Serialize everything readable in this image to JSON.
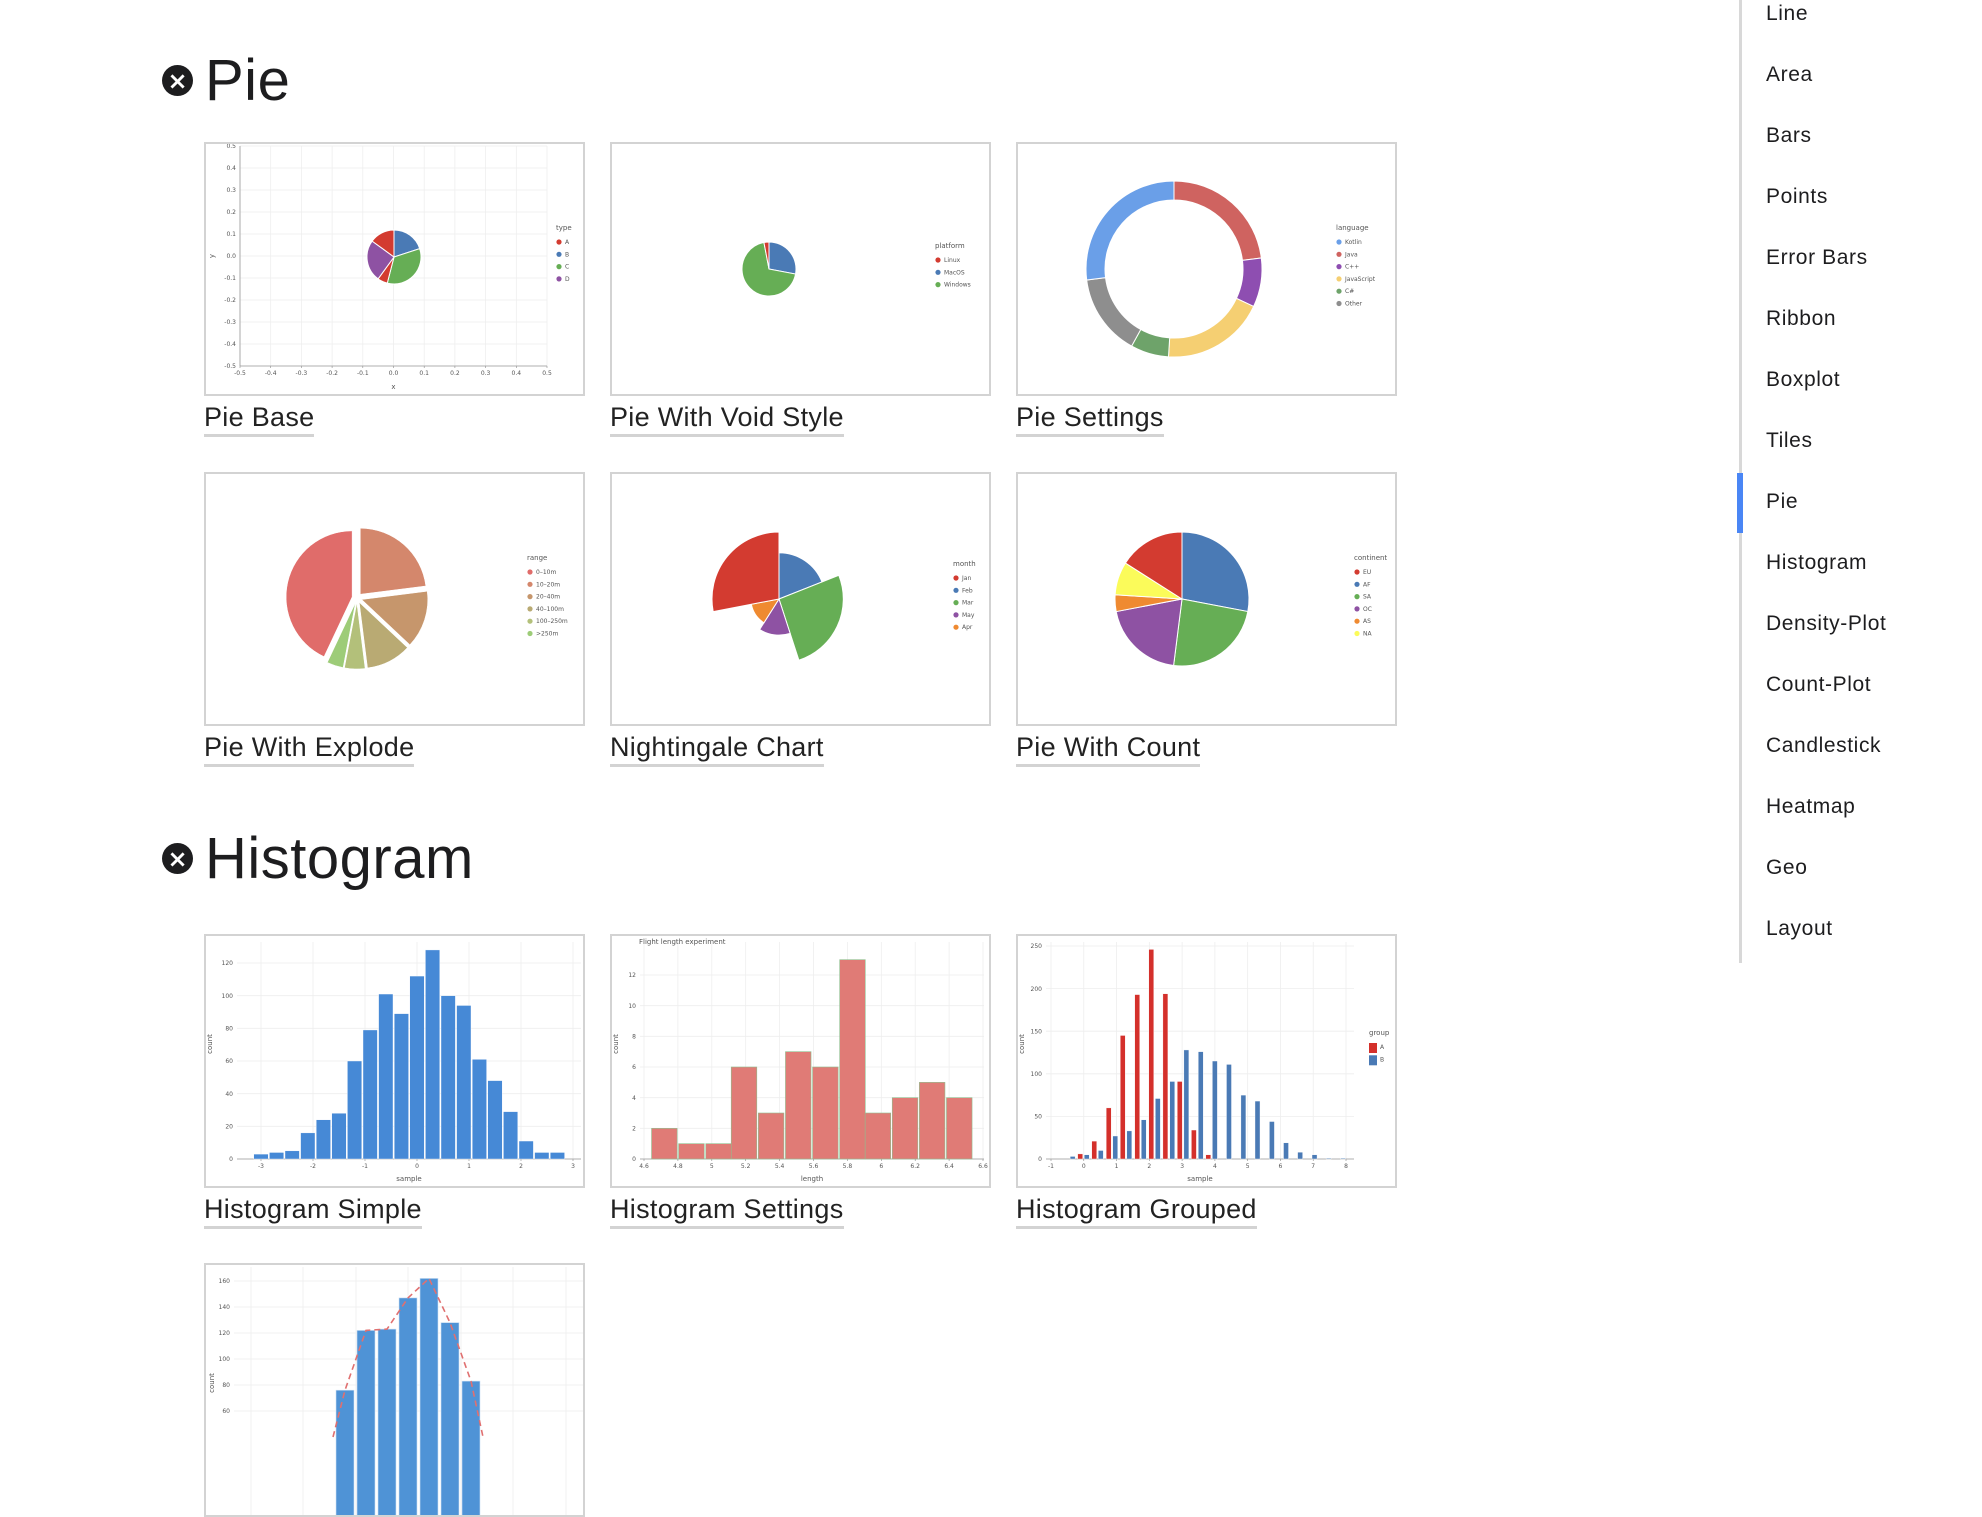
{
  "sections": [
    {
      "title": "Pie",
      "icon": "close-circle-icon"
    },
    {
      "title": "Histogram",
      "icon": "close-circle-icon"
    }
  ],
  "cards": [
    {
      "caption": "Pie Base"
    },
    {
      "caption": "Pie With Void Style"
    },
    {
      "caption": "Pie Settings"
    },
    {
      "caption": "Pie With Explode"
    },
    {
      "caption": "Nightingale Chart"
    },
    {
      "caption": "Pie With Count"
    },
    {
      "caption": "Histogram Simple"
    },
    {
      "caption": "Histogram Settings"
    },
    {
      "caption": "Histogram Grouped"
    },
    {
      "caption": ""
    }
  ],
  "sidebar": {
    "active": "Pie",
    "accent_color": "#4a86f5",
    "items": [
      "Line",
      "Area",
      "Bars",
      "Points",
      "Error Bars",
      "Ribbon",
      "Boxplot",
      "Tiles",
      "Pie",
      "Histogram",
      "Density-Plot",
      "Count-Plot",
      "Candlestick",
      "Heatmap",
      "Geo",
      "Layout"
    ]
  },
  "chart_data": [
    {
      "type": "pie",
      "xlabel": "x",
      "ylabel": "y",
      "xlim": [
        -0.5,
        0.5
      ],
      "ylim": [
        -0.5,
        0.5
      ],
      "xticks": [
        "-0.5",
        "-0.4",
        "-0.3",
        "-0.2",
        "-0.1",
        "0.0",
        "0.1",
        "0.2",
        "0.3",
        "0.4",
        "0.5"
      ],
      "yticks": [
        "0.5",
        "0.4",
        "0.3",
        "0.2",
        "0.1",
        "0.0",
        "-0.1",
        "-0.2",
        "-0.3",
        "-0.4",
        "-0.5"
      ],
      "grid": true,
      "slices": [
        {
          "name": "B",
          "value": 20
        },
        {
          "name": "C",
          "value": 34
        },
        {
          "name": "A",
          "value": 6
        },
        {
          "name": "D",
          "value": 25
        },
        {
          "name": "A",
          "value": 15
        }
      ],
      "legend": {
        "title": "type",
        "items": [
          "A",
          "B",
          "C",
          "D"
        ]
      },
      "colors": {
        "A": "#d33b30",
        "B": "#4a7ab5",
        "C": "#66ae55",
        "D": "#8e52a3"
      }
    },
    {
      "type": "pie",
      "slices": [
        {
          "name": "MacOS",
          "value": 28
        },
        {
          "name": "Windows",
          "value": 69
        },
        {
          "name": "Linux",
          "value": 3
        }
      ],
      "legend": {
        "title": "platform",
        "items": [
          "Linux",
          "MacOS",
          "Windows"
        ]
      },
      "colors": {
        "Linux": "#d33b30",
        "MacOS": "#4a7ab5",
        "Windows": "#66ae55"
      }
    },
    {
      "type": "pie",
      "hole": true,
      "slices": [
        {
          "name": "Java",
          "value": 23
        },
        {
          "name": "C++",
          "value": 9
        },
        {
          "name": "JavaScript",
          "value": 19
        },
        {
          "name": "C#",
          "value": 7
        },
        {
          "name": "Other",
          "value": 15
        },
        {
          "name": "Kotlin",
          "value": 27
        }
      ],
      "legend": {
        "title": "language",
        "items": [
          "Kotlin",
          "Java",
          "C++",
          "JavaScript",
          "C#",
          "Other"
        ]
      },
      "colors": {
        "Kotlin": "#6a9fe8",
        "Java": "#cf6360",
        "C++": "#8e4eb1",
        "JavaScript": "#f5cf72",
        "C#": "#6ea36a",
        "Other": "#8e8e8e"
      }
    },
    {
      "type": "pie",
      "explode": true,
      "slices": [
        {
          "name": "10–20m",
          "value": 23
        },
        {
          "name": "20–40m",
          "value": 14
        },
        {
          "name": "40–100m",
          "value": 11
        },
        {
          "name": "100–250m",
          "value": 5
        },
        {
          "name": ">250m",
          "value": 4
        },
        {
          "name": "0–10m",
          "value": 43
        }
      ],
      "legend": {
        "title": "range",
        "items": [
          "0–10m",
          "10–20m",
          "20–40m",
          "40–100m",
          "100–250m",
          ">250m"
        ]
      },
      "colors": {
        "0–10m": "#e06c6a",
        "10–20m": "#d4876c",
        "20–40m": "#c6966c",
        "40–100m": "#b9aa73",
        "100–250m": "#b3c07a",
        ">250m": "#9dcc78"
      }
    },
    {
      "type": "pie",
      "variant": "nightingale",
      "slices": [
        {
          "name": "Feb",
          "value": 19,
          "radius": 0.69
        },
        {
          "name": "Mar",
          "value": 26,
          "radius": 0.96
        },
        {
          "name": "May",
          "value": 14,
          "radius": 0.54
        },
        {
          "name": "Apr",
          "value": 13,
          "radius": 0.42
        },
        {
          "name": "Jan",
          "value": 28,
          "radius": 1.0
        }
      ],
      "legend": {
        "title": "month",
        "items": [
          "Jan",
          "Feb",
          "Mar",
          "May",
          "Apr"
        ]
      },
      "colors": {
        "Jan": "#d33b30",
        "Feb": "#4a7ab5",
        "Mar": "#66ae55",
        "May": "#8e52a3",
        "Apr": "#ef8a31"
      }
    },
    {
      "type": "pie",
      "slices": [
        {
          "name": "AF",
          "value": 28
        },
        {
          "name": "SA",
          "value": 24
        },
        {
          "name": "OC",
          "value": 20
        },
        {
          "name": "AS",
          "value": 4
        },
        {
          "name": "NA",
          "value": 8
        },
        {
          "name": "EU",
          "value": 16
        }
      ],
      "legend": {
        "title": "continent",
        "items": [
          "EU",
          "AF",
          "SA",
          "OC",
          "AS",
          "NA"
        ]
      },
      "colors": {
        "EU": "#d33b30",
        "AF": "#4a7ab5",
        "SA": "#66ae55",
        "OC": "#8e52a3",
        "AS": "#ef8a31",
        "NA": "#fbfb5a"
      }
    },
    {
      "type": "bar",
      "xlabel": "sample",
      "ylabel": "count",
      "xlim": [
        -3,
        3
      ],
      "ylim": [
        0,
        120
      ],
      "grid": true,
      "xticks": [
        -3,
        -2,
        -1,
        0,
        1,
        2,
        3
      ],
      "yticks": [
        0,
        20,
        40,
        60,
        80,
        100,
        120
      ],
      "binwidth": 0.3,
      "series": [
        {
          "color": "#4689d6",
          "x": [
            -3.0,
            -2.7,
            -2.4,
            -2.1,
            -1.8,
            -1.5,
            -1.2,
            -0.9,
            -0.6,
            -0.3,
            0.0,
            0.3,
            0.6,
            0.9,
            1.2,
            1.5,
            1.8,
            2.1,
            2.4,
            2.7
          ],
          "values": [
            3,
            4,
            5,
            16,
            24,
            28,
            60,
            79,
            101,
            89,
            112,
            128,
            100,
            94,
            61,
            48,
            29,
            11,
            4,
            4
          ]
        }
      ]
    },
    {
      "type": "bar",
      "title": "Flight length experiment",
      "xlabel": "length",
      "ylabel": "count",
      "xlim": [
        4.6,
        6.6
      ],
      "ylim": [
        0,
        12
      ],
      "grid": true,
      "xticks": [
        4.6,
        4.8,
        5.0,
        5.2,
        5.4,
        5.6,
        5.8,
        6.0,
        6.2,
        6.4,
        6.6
      ],
      "yticks": [
        0,
        2,
        4,
        6,
        8,
        10,
        12
      ],
      "binwidth": 0.158,
      "series": [
        {
          "color": "#e07b76",
          "outline": "#8fbf8f",
          "x": [
            4.72,
            4.88,
            5.04,
            5.19,
            5.35,
            5.51,
            5.67,
            5.83,
            5.98,
            6.14,
            6.3,
            6.46
          ],
          "values": [
            2,
            1,
            1,
            6,
            3,
            7,
            6,
            13,
            3,
            4,
            5,
            4
          ]
        }
      ]
    },
    {
      "type": "bar",
      "xlabel": "sample",
      "ylabel": "count",
      "xlim": [
        -1,
        8
      ],
      "ylim": [
        0,
        250
      ],
      "grid": true,
      "xticks": [
        -1,
        0,
        1,
        2,
        3,
        4,
        5,
        6,
        7,
        8
      ],
      "yticks": [
        0,
        50,
        100,
        150,
        200,
        250
      ],
      "binwidth": 0.19,
      "legend": {
        "title": "group",
        "items": [
          "A",
          "B"
        ]
      },
      "series": [
        {
          "name": "A",
          "color": "#d4302b",
          "x": [
            -0.11,
            0.32,
            0.76,
            1.19,
            1.63,
            2.06,
            2.49,
            2.93,
            3.36,
            3.8
          ],
          "values": [
            6,
            21,
            60,
            145,
            193,
            246,
            194,
            91,
            34,
            5
          ]
        },
        {
          "name": "B",
          "color": "#4a7ab5",
          "x": [
            -0.34,
            0.09,
            0.52,
            0.96,
            1.39,
            1.83,
            2.26,
            2.7,
            3.13,
            3.57,
            4.0,
            4.43,
            4.87,
            5.3,
            5.74,
            6.17,
            6.6,
            7.04,
            7.47,
            7.91
          ],
          "values": [
            3,
            5,
            10,
            27,
            33,
            46,
            71,
            91,
            128,
            126,
            115,
            111,
            75,
            68,
            44,
            19,
            8,
            5,
            1,
            1
          ]
        }
      ]
    },
    {
      "type": "bar",
      "ylabel": "count",
      "yticks": [
        60,
        80,
        100,
        120,
        140,
        160
      ],
      "grid": true,
      "series": [
        {
          "color": "#4f93d6",
          "values": [
            76,
            122,
            123,
            147,
            162,
            128,
            83
          ]
        }
      ],
      "line": {
        "style": "dashed",
        "color": "#e07070"
      }
    }
  ]
}
